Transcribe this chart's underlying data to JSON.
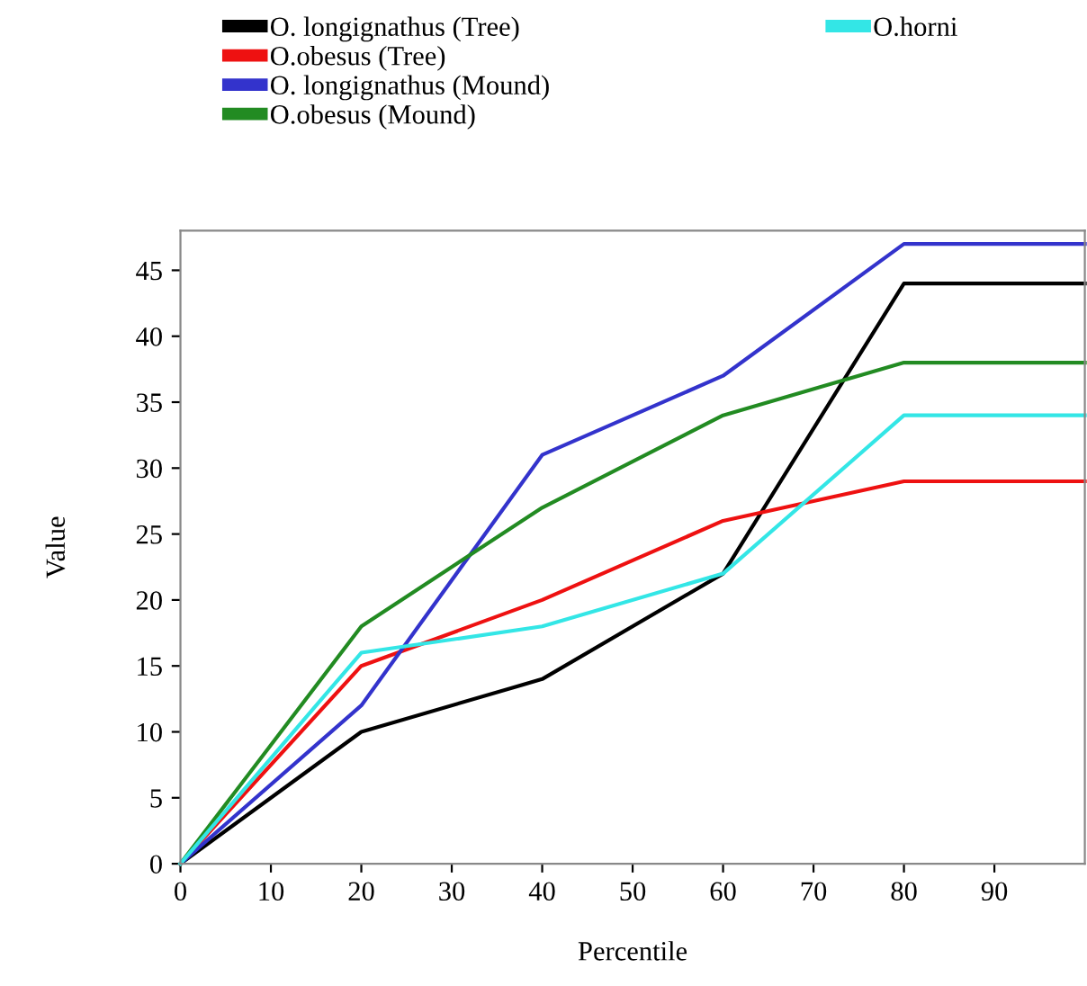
{
  "chart_data": {
    "type": "line",
    "xlabel": "Percentile",
    "ylabel": "Value",
    "x": [
      0,
      20,
      40,
      60,
      80,
      100
    ],
    "series": [
      {
        "name": "O. longignathus (Tree)",
        "color": "#000000",
        "values": [
          0,
          10,
          14,
          22,
          44,
          44
        ]
      },
      {
        "name": "O.obesus (Tree)",
        "color": "#ee1111",
        "values": [
          0,
          15,
          20,
          26,
          29,
          29
        ]
      },
      {
        "name": "O. longignathus (Mound)",
        "color": "#3333cc",
        "values": [
          0,
          12,
          31,
          37,
          47,
          47
        ]
      },
      {
        "name": "O.obesus (Mound)",
        "color": "#228b22",
        "values": [
          0,
          18,
          27,
          34,
          38,
          38
        ]
      },
      {
        "name": "O.horni",
        "color": "#33e6e6",
        "values": [
          0,
          16,
          18,
          22,
          34,
          34
        ]
      }
    ],
    "xlim": [
      0,
      100
    ],
    "xticks": [
      0,
      10,
      20,
      30,
      40,
      50,
      60,
      70,
      80,
      90
    ],
    "ylim": [
      0,
      48
    ],
    "yticks": [
      0,
      5,
      10,
      15,
      20,
      25,
      30,
      35,
      40,
      45
    ],
    "grid": false,
    "legend": "top",
    "marker": "none",
    "line_style": "solid"
  }
}
